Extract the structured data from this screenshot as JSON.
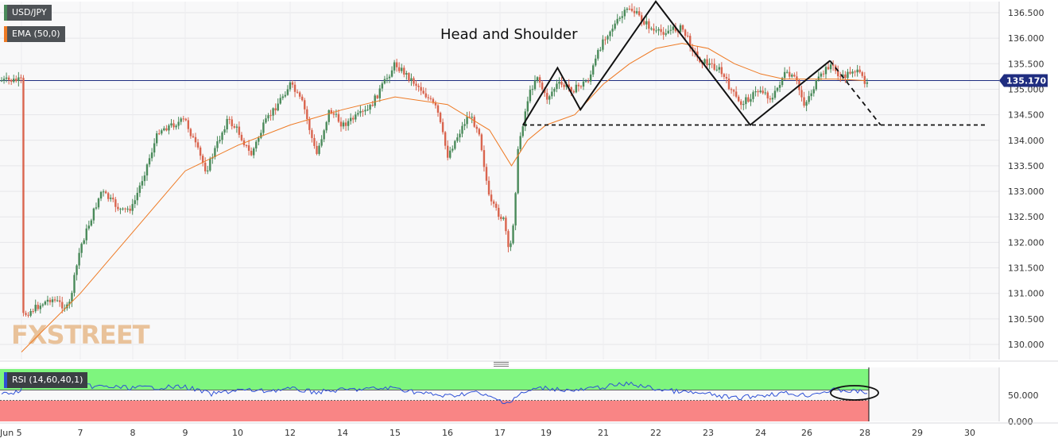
{
  "legend": {
    "symbol": "USD/JPY",
    "ema_label": "EMA (50,0)",
    "rsi_label": "RSI (14,60,40,1)"
  },
  "watermark": "FXSTREET",
  "annotation": "Head and Shoulder",
  "current_price": "135.170",
  "colors": {
    "up": "#4a8a5a",
    "down": "#d9644e",
    "ema": "#ee7a24",
    "rsi": "#2d4fd6",
    "rsi_overbought_zone": "#7ef57e",
    "rsi_oversold_zone": "#f98585",
    "price_line": "#1f2d80",
    "pattern": "#111111",
    "symbol_marker": "#4a8a5a",
    "ema_marker": "#ee7a24"
  },
  "chart_data": [
    {
      "type": "candlestick",
      "title": "USD/JPY",
      "ylim": [
        129.7,
        136.7
      ],
      "y_ticks": [
        "130.000",
        "130.500",
        "131.000",
        "131.500",
        "132.000",
        "132.500",
        "133.000",
        "133.500",
        "134.000",
        "134.500",
        "135.000",
        "135.500",
        "136.000",
        "136.500"
      ],
      "x_ticks": [
        "Jun 5",
        "7",
        "8",
        "9",
        "10",
        "12",
        "14",
        "15",
        "16",
        "17",
        "19",
        "21",
        "22",
        "23",
        "24",
        "26",
        "28",
        "29",
        "30"
      ],
      "price_path": [
        [
          "Jun 5",
          130.55
        ],
        [
          "6",
          130.9
        ],
        [
          "6.6",
          130.7
        ],
        [
          "7",
          131.9
        ],
        [
          "7.4",
          133.0
        ],
        [
          "7.8",
          132.6
        ],
        [
          "8",
          132.7
        ],
        [
          "8.5",
          134.2
        ],
        [
          "9",
          134.4
        ],
        [
          "9.4",
          133.4
        ],
        [
          "9.8",
          134.4
        ],
        [
          "10",
          134.2
        ],
        [
          "10.5",
          133.7
        ],
        [
          "11",
          134.3
        ],
        [
          "12",
          135.1
        ],
        [
          "12.5",
          134.7
        ],
        [
          "13",
          133.7
        ],
        [
          "13.5",
          134.6
        ],
        [
          "14",
          134.3
        ],
        [
          "14.5",
          134.6
        ],
        [
          "15",
          135.5
        ],
        [
          "15.5",
          135.0
        ],
        [
          "15.8",
          134.6
        ],
        [
          "16",
          133.7
        ],
        [
          "16.4",
          134.5
        ],
        [
          "16.6",
          134.2
        ],
        [
          "16.8",
          132.8
        ],
        [
          "17.2",
          132.4
        ],
        [
          "17.4",
          131.7
        ],
        [
          "17.6",
          132.5
        ],
        [
          "17.8",
          133.9
        ],
        [
          "18.2",
          134.8
        ],
        [
          "18.6",
          135.3
        ],
        [
          "19",
          134.8
        ],
        [
          "19.4",
          135.1
        ],
        [
          "20",
          135.0
        ],
        [
          "20.5",
          135.2
        ],
        [
          "21",
          136.0
        ],
        [
          "21.5",
          136.6
        ],
        [
          "22",
          136.1
        ],
        [
          "22.5",
          136.2
        ],
        [
          "22.8",
          135.6
        ],
        [
          "23.2",
          135.4
        ],
        [
          "23.6",
          134.7
        ],
        [
          "24",
          135.0
        ],
        [
          "24.5",
          134.8
        ],
        [
          "25",
          135.3
        ],
        [
          "25.5",
          135.2
        ],
        [
          "25.9",
          134.7
        ],
        [
          "26.3",
          135.1
        ],
        [
          "26.8",
          135.5
        ],
        [
          "27.2",
          135.2
        ],
        [
          "27.6",
          135.4
        ],
        [
          "28",
          135.17
        ]
      ],
      "ema_path": [
        [
          "Jun 5",
          129.85
        ],
        [
          "7",
          131.0
        ],
        [
          "8",
          132.2
        ],
        [
          "9",
          133.4
        ],
        [
          "10",
          133.9
        ],
        [
          "12",
          134.3
        ],
        [
          "14",
          134.6
        ],
        [
          "15",
          134.85
        ],
        [
          "16",
          134.7
        ],
        [
          "16.8",
          134.2
        ],
        [
          "17.5",
          133.5
        ],
        [
          "18.2",
          134.0
        ],
        [
          "19",
          134.3
        ],
        [
          "20",
          134.5
        ],
        [
          "21",
          135.1
        ],
        [
          "21.5",
          135.5
        ],
        [
          "22",
          135.8
        ],
        [
          "22.5",
          135.9
        ],
        [
          "23",
          135.8
        ],
        [
          "23.5",
          135.5
        ],
        [
          "24",
          135.3
        ],
        [
          "25",
          135.2
        ],
        [
          "26",
          135.2
        ],
        [
          "27",
          135.2
        ],
        [
          "28",
          135.17
        ]
      ],
      "pattern_points": [
        [
          "18",
          134.3
        ],
        [
          "19.4",
          135.42
        ],
        [
          "20.2",
          134.6
        ],
        [
          "22",
          136.72
        ],
        [
          "23.8",
          134.3
        ],
        [
          "26.8",
          135.56
        ],
        [
          "28",
          134.95
        ],
        [
          "28.3",
          134.3
        ]
      ],
      "neckline": 134.3
    },
    {
      "type": "line",
      "title": "RSI (14,60,40,1)",
      "ylim": [
        0,
        100
      ],
      "y_ticks": [
        "0.000",
        "50.000"
      ],
      "overbought": 60,
      "oversold": 40,
      "rsi_path": [
        [
          "Jun 5",
          72
        ],
        [
          "6",
          70
        ],
        [
          "7",
          68
        ],
        [
          "8",
          64
        ],
        [
          "9",
          66
        ],
        [
          "9.5",
          52
        ],
        [
          "10",
          60
        ],
        [
          "11",
          58
        ],
        [
          "12",
          62
        ],
        [
          "13",
          56
        ],
        [
          "14",
          60
        ],
        [
          "15",
          64
        ],
        [
          "15.5",
          54
        ],
        [
          "16",
          48
        ],
        [
          "16.5",
          56
        ],
        [
          "17",
          40
        ],
        [
          "17.4",
          36
        ],
        [
          "17.8",
          50
        ],
        [
          "18.5",
          62
        ],
        [
          "19",
          64
        ],
        [
          "20",
          58
        ],
        [
          "21",
          66
        ],
        [
          "21.5",
          72
        ],
        [
          "22",
          62
        ],
        [
          "22.5",
          56
        ],
        [
          "23",
          52
        ],
        [
          "23.5",
          44
        ],
        [
          "24",
          50
        ],
        [
          "25",
          54
        ],
        [
          "26",
          50
        ],
        [
          "26.5",
          56
        ],
        [
          "27",
          60
        ],
        [
          "28",
          56
        ]
      ]
    }
  ]
}
